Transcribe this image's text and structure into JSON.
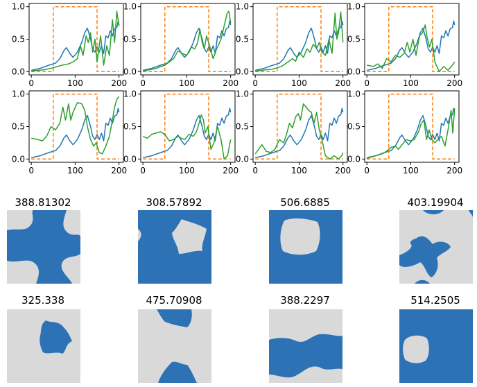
{
  "chart_data": [
    {
      "type": "line",
      "series": [
        "blue",
        "orange",
        "green"
      ],
      "x_ticks": [
        "0",
        "100",
        "200"
      ],
      "y_ticks": [
        "0.0",
        "0.5",
        "1.0"
      ],
      "xlim": [
        -5,
        210
      ],
      "ylim": [
        -0.05,
        1.05
      ],
      "grid": false
    },
    {
      "type": "line",
      "series": [
        "blue",
        "orange",
        "green"
      ],
      "x_ticks": [
        "0",
        "100",
        "200"
      ],
      "y_ticks": [
        "0.0",
        "0.5",
        "1.0"
      ],
      "xlim": [
        -5,
        210
      ],
      "ylim": [
        -0.05,
        1.05
      ],
      "grid": false
    },
    {
      "type": "line",
      "series": [
        "blue",
        "orange",
        "green"
      ],
      "x_ticks": [
        "0",
        "100",
        "200"
      ],
      "y_ticks": [
        "0.0",
        "0.5",
        "1.0"
      ],
      "xlim": [
        -5,
        210
      ],
      "ylim": [
        -0.05,
        1.05
      ],
      "grid": false
    },
    {
      "type": "line",
      "series": [
        "blue",
        "orange",
        "green"
      ],
      "x_ticks": [
        "0",
        "100",
        "200"
      ],
      "y_ticks": [
        "0.0",
        "0.5",
        "1.0"
      ],
      "xlim": [
        -5,
        210
      ],
      "ylim": [
        -0.05,
        1.05
      ],
      "grid": false
    },
    {
      "type": "line",
      "series": [
        "blue",
        "orange",
        "green"
      ],
      "x_ticks": [
        "0",
        "100",
        "200"
      ],
      "y_ticks": [
        "0.0",
        "0.5",
        "1.0"
      ],
      "xlim": [
        -5,
        210
      ],
      "ylim": [
        -0.05,
        1.05
      ],
      "grid": false
    },
    {
      "type": "line",
      "series": [
        "blue",
        "orange",
        "green"
      ],
      "x_ticks": [
        "0",
        "100",
        "200"
      ],
      "y_ticks": [
        "0.0",
        "0.5",
        "1.0"
      ],
      "xlim": [
        -5,
        210
      ],
      "ylim": [
        -0.05,
        1.05
      ],
      "grid": false
    },
    {
      "type": "line",
      "series": [
        "blue",
        "orange",
        "green"
      ],
      "x_ticks": [
        "0",
        "100",
        "200"
      ],
      "y_ticks": [
        "0.0",
        "0.5",
        "1.0"
      ],
      "xlim": [
        -5,
        210
      ],
      "ylim": [
        -0.05,
        1.05
      ],
      "grid": false
    },
    {
      "type": "line",
      "series": [
        "blue",
        "orange",
        "green"
      ],
      "x_ticks": [
        "0",
        "100",
        "200"
      ],
      "y_ticks": [
        "0.0",
        "0.5",
        "1.0"
      ],
      "xlim": [
        -5,
        210
      ],
      "ylim": [
        -0.05,
        1.05
      ],
      "grid": false
    }
  ],
  "plot_data": {
    "blue": [
      [
        0,
        0.02
      ],
      [
        20,
        0.05
      ],
      [
        40,
        0.1
      ],
      [
        55,
        0.13
      ],
      [
        65,
        0.2
      ],
      [
        75,
        0.33
      ],
      [
        80,
        0.37
      ],
      [
        88,
        0.28
      ],
      [
        95,
        0.22
      ],
      [
        105,
        0.3
      ],
      [
        115,
        0.45
      ],
      [
        122,
        0.6
      ],
      [
        128,
        0.67
      ],
      [
        135,
        0.5
      ],
      [
        140,
        0.35
      ],
      [
        145,
        0.3
      ],
      [
        150,
        0.38
      ],
      [
        155,
        0.3
      ],
      [
        160,
        0.4
      ],
      [
        165,
        0.28
      ],
      [
        170,
        0.55
      ],
      [
        175,
        0.52
      ],
      [
        180,
        0.63
      ],
      [
        185,
        0.55
      ],
      [
        190,
        0.66
      ],
      [
        195,
        0.68
      ],
      [
        198,
        0.78
      ],
      [
        200,
        0.72
      ]
    ],
    "orange": [
      [
        0,
        0
      ],
      [
        50,
        0
      ],
      [
        50,
        1
      ],
      [
        150,
        1
      ],
      [
        150,
        0
      ],
      [
        200,
        0
      ]
    ],
    "green": [
      [
        [
          0,
          0.01
        ],
        [
          30,
          0.03
        ],
        [
          50,
          0.06
        ],
        [
          70,
          0.1
        ],
        [
          85,
          0.12
        ],
        [
          95,
          0.15
        ],
        [
          105,
          0.2
        ],
        [
          112,
          0.4
        ],
        [
          118,
          0.25
        ],
        [
          125,
          0.55
        ],
        [
          130,
          0.45
        ],
        [
          135,
          0.6
        ],
        [
          140,
          0.3
        ],
        [
          145,
          0.5
        ],
        [
          150,
          0.15
        ],
        [
          158,
          0.55
        ],
        [
          165,
          0.1
        ],
        [
          172,
          0.4
        ],
        [
          178,
          0.25
        ],
        [
          185,
          0.8
        ],
        [
          190,
          0.45
        ],
        [
          195,
          0.93
        ],
        [
          200,
          0.7
        ]
      ],
      [
        [
          0,
          0.01
        ],
        [
          30,
          0.05
        ],
        [
          50,
          0.1
        ],
        [
          70,
          0.2
        ],
        [
          80,
          0.32
        ],
        [
          90,
          0.28
        ],
        [
          100,
          0.25
        ],
        [
          110,
          0.38
        ],
        [
          118,
          0.35
        ],
        [
          125,
          0.45
        ],
        [
          130,
          0.65
        ],
        [
          135,
          0.45
        ],
        [
          140,
          0.35
        ],
        [
          145,
          0.55
        ],
        [
          152,
          0.4
        ],
        [
          160,
          0.2
        ],
        [
          168,
          0.35
        ],
        [
          178,
          0.5
        ],
        [
          185,
          0.7
        ],
        [
          192,
          0.9
        ],
        [
          196,
          0.93
        ],
        [
          200,
          0.75
        ]
      ],
      [
        [
          0,
          0.01
        ],
        [
          40,
          0.04
        ],
        [
          60,
          0.08
        ],
        [
          75,
          0.15
        ],
        [
          85,
          0.2
        ],
        [
          92,
          0.16
        ],
        [
          100,
          0.3
        ],
        [
          110,
          0.22
        ],
        [
          118,
          0.35
        ],
        [
          125,
          0.3
        ],
        [
          132,
          0.42
        ],
        [
          140,
          0.36
        ],
        [
          146,
          0.45
        ],
        [
          152,
          0.3
        ],
        [
          160,
          0.25
        ],
        [
          168,
          0.5
        ],
        [
          175,
          0.28
        ],
        [
          182,
          0.9
        ],
        [
          186,
          0.5
        ],
        [
          190,
          0.6
        ],
        [
          195,
          0.92
        ],
        [
          200,
          0.45
        ]
      ],
      [
        [
          0,
          0.1
        ],
        [
          15,
          0.08
        ],
        [
          25,
          0.12
        ],
        [
          35,
          0.05
        ],
        [
          45,
          0.2
        ],
        [
          55,
          0.15
        ],
        [
          65,
          0.25
        ],
        [
          75,
          0.22
        ],
        [
          85,
          0.28
        ],
        [
          92,
          0.45
        ],
        [
          98,
          0.3
        ],
        [
          105,
          0.5
        ],
        [
          112,
          0.25
        ],
        [
          120,
          0.55
        ],
        [
          127,
          0.6
        ],
        [
          133,
          0.72
        ],
        [
          138,
          0.5
        ],
        [
          143,
          0.38
        ],
        [
          148,
          0.5
        ],
        [
          155,
          0.15
        ],
        [
          165,
          0.0
        ],
        [
          175,
          0.08
        ],
        [
          185,
          0.02
        ],
        [
          195,
          0.1
        ],
        [
          200,
          0.15
        ]
      ],
      [
        [
          0,
          0.32
        ],
        [
          15,
          0.3
        ],
        [
          25,
          0.28
        ],
        [
          35,
          0.35
        ],
        [
          45,
          0.5
        ],
        [
          55,
          0.45
        ],
        [
          65,
          0.55
        ],
        [
          72,
          0.8
        ],
        [
          78,
          0.6
        ],
        [
          85,
          0.85
        ],
        [
          90,
          0.6
        ],
        [
          95,
          0.72
        ],
        [
          105,
          0.87
        ],
        [
          115,
          0.85
        ],
        [
          122,
          0.75
        ],
        [
          128,
          0.5
        ],
        [
          135,
          0.3
        ],
        [
          142,
          0.2
        ],
        [
          148,
          0.25
        ],
        [
          155,
          0.1
        ],
        [
          162,
          0.08
        ],
        [
          170,
          0.2
        ],
        [
          178,
          0.35
        ],
        [
          185,
          0.6
        ],
        [
          190,
          0.8
        ],
        [
          195,
          0.92
        ],
        [
          200,
          0.96
        ]
      ],
      [
        [
          0,
          0.35
        ],
        [
          10,
          0.32
        ],
        [
          20,
          0.38
        ],
        [
          30,
          0.4
        ],
        [
          40,
          0.42
        ],
        [
          50,
          0.38
        ],
        [
          60,
          0.28
        ],
        [
          70,
          0.3
        ],
        [
          80,
          0.35
        ],
        [
          88,
          0.32
        ],
        [
          95,
          0.3
        ],
        [
          105,
          0.38
        ],
        [
          115,
          0.35
        ],
        [
          122,
          0.42
        ],
        [
          128,
          0.55
        ],
        [
          133,
          0.68
        ],
        [
          138,
          0.6
        ],
        [
          142,
          0.4
        ],
        [
          148,
          0.5
        ],
        [
          155,
          0.15
        ],
        [
          162,
          0.25
        ],
        [
          170,
          0.5
        ],
        [
          178,
          0.3
        ],
        [
          185,
          0.0
        ],
        [
          193,
          0.05
        ],
        [
          200,
          0.3
        ]
      ],
      [
        [
          0,
          0.08
        ],
        [
          15,
          0.22
        ],
        [
          25,
          0.12
        ],
        [
          35,
          0.1
        ],
        [
          45,
          0.15
        ],
        [
          55,
          0.3
        ],
        [
          65,
          0.25
        ],
        [
          72,
          0.4
        ],
        [
          78,
          0.55
        ],
        [
          85,
          0.48
        ],
        [
          92,
          0.65
        ],
        [
          98,
          0.7
        ],
        [
          103,
          0.6
        ],
        [
          110,
          0.85
        ],
        [
          116,
          0.8
        ],
        [
          122,
          0.75
        ],
        [
          128,
          0.72
        ],
        [
          134,
          0.55
        ],
        [
          140,
          0.72
        ],
        [
          146,
          0.45
        ],
        [
          152,
          0.3
        ],
        [
          160,
          0.05
        ],
        [
          170,
          0.0
        ],
        [
          180,
          0.05
        ],
        [
          190,
          0.0
        ],
        [
          197,
          0.05
        ],
        [
          200,
          0.1
        ]
      ],
      [
        [
          0,
          0.01
        ],
        [
          20,
          0.05
        ],
        [
          35,
          0.08
        ],
        [
          45,
          0.12
        ],
        [
          55,
          0.18
        ],
        [
          65,
          0.2
        ],
        [
          72,
          0.15
        ],
        [
          80,
          0.22
        ],
        [
          90,
          0.3
        ],
        [
          98,
          0.28
        ],
        [
          108,
          0.3
        ],
        [
          112,
          0.35
        ],
        [
          118,
          0.42
        ],
        [
          124,
          0.55
        ],
        [
          130,
          0.6
        ],
        [
          136,
          0.3
        ],
        [
          142,
          0.45
        ],
        [
          148,
          0.3
        ],
        [
          155,
          0.25
        ],
        [
          162,
          0.3
        ],
        [
          170,
          0.35
        ],
        [
          178,
          0.2
        ],
        [
          185,
          0.45
        ],
        [
          192,
          0.75
        ],
        [
          196,
          0.4
        ],
        [
          200,
          0.78
        ]
      ]
    ]
  },
  "images": [
    {
      "title": "388.81302"
    },
    {
      "title": "308.57892"
    },
    {
      "title": "506.6885"
    },
    {
      "title": "403.19904"
    },
    {
      "title": "325.338"
    },
    {
      "title": "475.70908"
    },
    {
      "title": "388.2297"
    },
    {
      "title": "514.2505"
    }
  ],
  "colors": {
    "blue": "#1f77b4",
    "orange": "#ff7f0e",
    "green": "#2ca02c",
    "fill": "#2c72b5",
    "void": "#d9d9d9",
    "axis": "#000000"
  }
}
